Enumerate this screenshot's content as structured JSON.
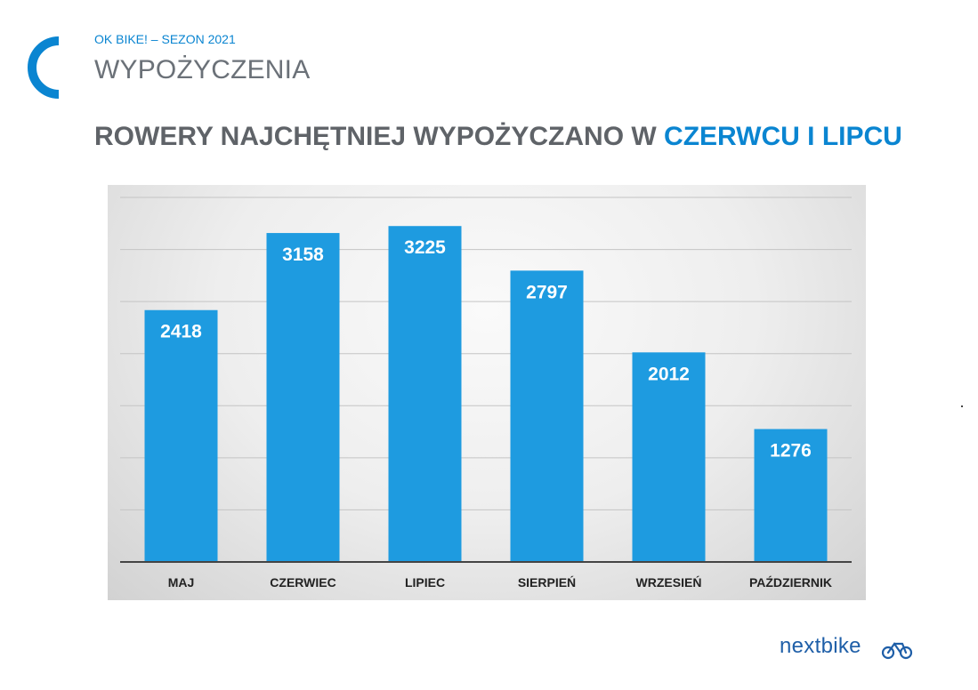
{
  "header": {
    "kicker": "OK BIKE! – SEZON 2021",
    "section_title": "WYPOŻYCZENIA"
  },
  "headline": {
    "main": "ROWERY NAJCHĘTNIEJ WYPOŻYCZANO W ",
    "accent": "CZERWCU I LIPCU"
  },
  "brand": {
    "name": "nextbike",
    "icon": "bicycle-icon"
  },
  "colors": {
    "accent": "#0a85d1",
    "bar": "#1e9be0",
    "heading": "#5f6368",
    "brand": "#1f5fa8"
  },
  "chart_data": {
    "type": "bar",
    "title": "ROWERY NAJCHĘTNIEJ WYPOŻYCZANO W CZERWCU I LIPCU",
    "categories": [
      "MAJ",
      "CZERWIEC",
      "LIPIEC",
      "SIERPIEŃ",
      "WRZESIEŃ",
      "PAŹDZIERNIK"
    ],
    "values": [
      2418,
      3158,
      3225,
      2797,
      2012,
      1276
    ],
    "xlabel": "",
    "ylabel": "",
    "ylim": [
      0,
      3500
    ],
    "grid": true,
    "legend": "none"
  }
}
